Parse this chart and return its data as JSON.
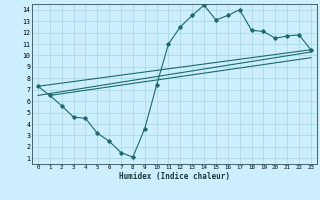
{
  "xlabel": "Humidex (Indice chaleur)",
  "bg_color": "#cceeff",
  "grid_color": "#aadddd",
  "line_color": "#1a6b6b",
  "xlim": [
    -0.5,
    23.5
  ],
  "ylim": [
    0.5,
    14.5
  ],
  "xticks": [
    0,
    1,
    2,
    3,
    4,
    5,
    6,
    7,
    8,
    9,
    10,
    11,
    12,
    13,
    14,
    15,
    16,
    17,
    18,
    19,
    20,
    21,
    22,
    23
  ],
  "yticks": [
    1,
    2,
    3,
    4,
    5,
    6,
    7,
    8,
    9,
    10,
    11,
    12,
    13,
    14
  ],
  "line_zigzag": {
    "x": [
      0,
      1,
      2,
      3,
      4,
      5,
      6,
      7,
      8,
      9,
      10,
      11,
      12,
      13,
      14,
      15,
      16,
      17,
      18,
      19,
      20,
      21,
      22,
      23
    ],
    "y": [
      7.3,
      6.5,
      5.6,
      4.6,
      4.5,
      3.2,
      2.5,
      1.5,
      1.1,
      3.6,
      7.4,
      11.0,
      12.5,
      13.5,
      14.4,
      13.1,
      13.5,
      14.0,
      12.2,
      12.1,
      11.5,
      11.7,
      11.8,
      10.5
    ]
  },
  "line_top": {
    "x": [
      0,
      23
    ],
    "y": [
      7.3,
      10.5
    ]
  },
  "line_mid": {
    "x": [
      0,
      23
    ],
    "y": [
      6.5,
      10.3
    ]
  },
  "line_bot": {
    "x": [
      1,
      23
    ],
    "y": [
      6.5,
      9.8
    ]
  }
}
